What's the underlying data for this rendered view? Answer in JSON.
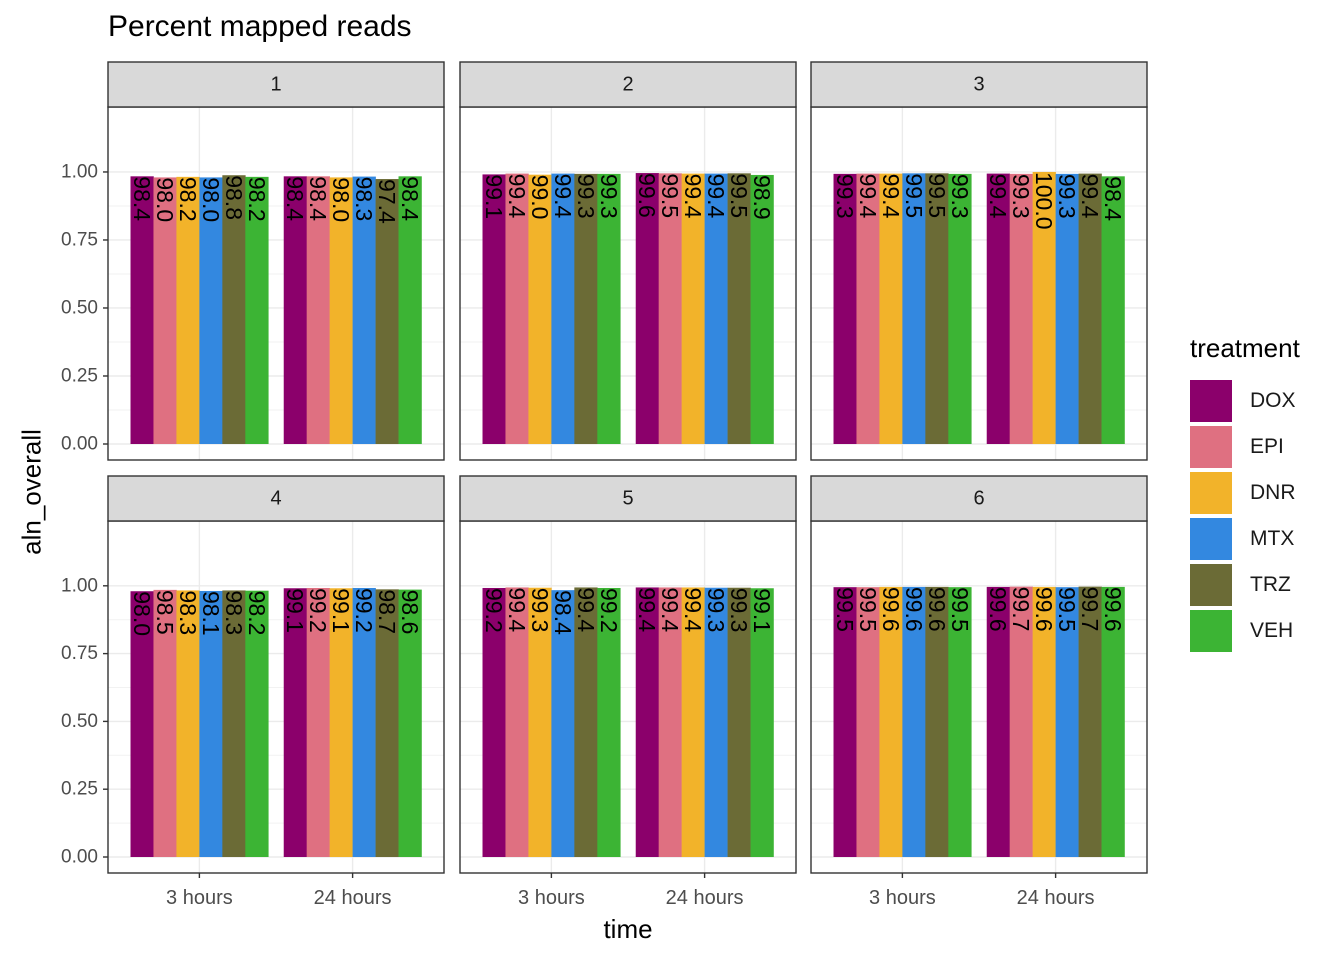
{
  "chart_data": {
    "type": "bar",
    "title": "Percent mapped reads",
    "xlabel": "time",
    "ylabel": "aln_overall",
    "ylim": [
      0,
      1.18
    ],
    "yticks": [
      "0.00",
      "0.25",
      "0.50",
      "0.75",
      "1.00"
    ],
    "ytick_values": [
      0,
      0.25,
      0.5,
      0.75,
      1.0
    ],
    "categories": [
      "3 hours",
      "24 hours"
    ],
    "legend": {
      "title": "treatment",
      "placement": "right"
    },
    "series_names": [
      "DOX",
      "EPI",
      "DNR",
      "MTX",
      "TRZ",
      "VEH"
    ],
    "colors": [
      "#8B006B",
      "#DF7081",
      "#F2B32A",
      "#3388E0",
      "#6B6B36",
      "#3CB434"
    ],
    "facets": [
      {
        "label": "1",
        "values": [
          [
            0.984,
            0.98,
            0.982,
            0.98,
            0.988,
            0.982
          ],
          [
            0.984,
            0.984,
            0.98,
            0.983,
            0.974,
            0.984
          ]
        ],
        "labels": [
          [
            "98.4",
            "98.0",
            "98.2",
            "98.0",
            "98.8",
            "98.2"
          ],
          [
            "98.4",
            "98.4",
            "98.0",
            "98.3",
            "97.4",
            "98.4"
          ]
        ]
      },
      {
        "label": "2",
        "values": [
          [
            0.991,
            0.994,
            0.99,
            0.994,
            0.993,
            0.993
          ],
          [
            0.996,
            0.995,
            0.994,
            0.994,
            0.995,
            0.989
          ]
        ],
        "labels": [
          [
            "99.1",
            "99.4",
            "99.0",
            "99.4",
            "99.3",
            "99.3"
          ],
          [
            "99.6",
            "99.5",
            "99.4",
            "99.4",
            "99.5",
            "98.9"
          ]
        ]
      },
      {
        "label": "3",
        "values": [
          [
            0.993,
            0.994,
            0.994,
            0.995,
            0.995,
            0.993
          ],
          [
            0.994,
            0.993,
            1.0,
            0.993,
            0.994,
            0.984
          ]
        ],
        "labels": [
          [
            "99.3",
            "99.4",
            "99.4",
            "99.5",
            "99.5",
            "99.3"
          ],
          [
            "99.4",
            "99.3",
            "100.0",
            "99.3",
            "99.4",
            "98.4"
          ]
        ]
      },
      {
        "label": "4",
        "values": [
          [
            0.98,
            0.985,
            0.983,
            0.981,
            0.983,
            0.982
          ],
          [
            0.991,
            0.992,
            0.991,
            0.992,
            0.987,
            0.986
          ]
        ],
        "labels": [
          [
            "98.0",
            "98.5",
            "98.3",
            "98.1",
            "98.3",
            "98.2"
          ],
          [
            "99.1",
            "99.2",
            "99.1",
            "99.2",
            "98.7",
            "98.6"
          ]
        ]
      },
      {
        "label": "5",
        "values": [
          [
            0.992,
            0.994,
            0.993,
            0.984,
            0.994,
            0.992
          ],
          [
            0.994,
            0.994,
            0.994,
            0.993,
            0.993,
            0.991
          ]
        ],
        "labels": [
          [
            "99.2",
            "99.4",
            "99.3",
            "98.4",
            "99.4",
            "99.2"
          ],
          [
            "99.4",
            "99.4",
            "99.4",
            "99.3",
            "99.3",
            "99.1"
          ]
        ]
      },
      {
        "label": "6",
        "values": [
          [
            0.995,
            0.995,
            0.996,
            0.996,
            0.996,
            0.995
          ],
          [
            0.996,
            0.997,
            0.996,
            0.995,
            0.997,
            0.996
          ]
        ],
        "labels": [
          [
            "99.5",
            "99.5",
            "99.6",
            "99.6",
            "99.6",
            "99.5"
          ],
          [
            "99.6",
            "99.7",
            "99.6",
            "99.5",
            "99.7",
            "99.6"
          ]
        ]
      }
    ]
  }
}
